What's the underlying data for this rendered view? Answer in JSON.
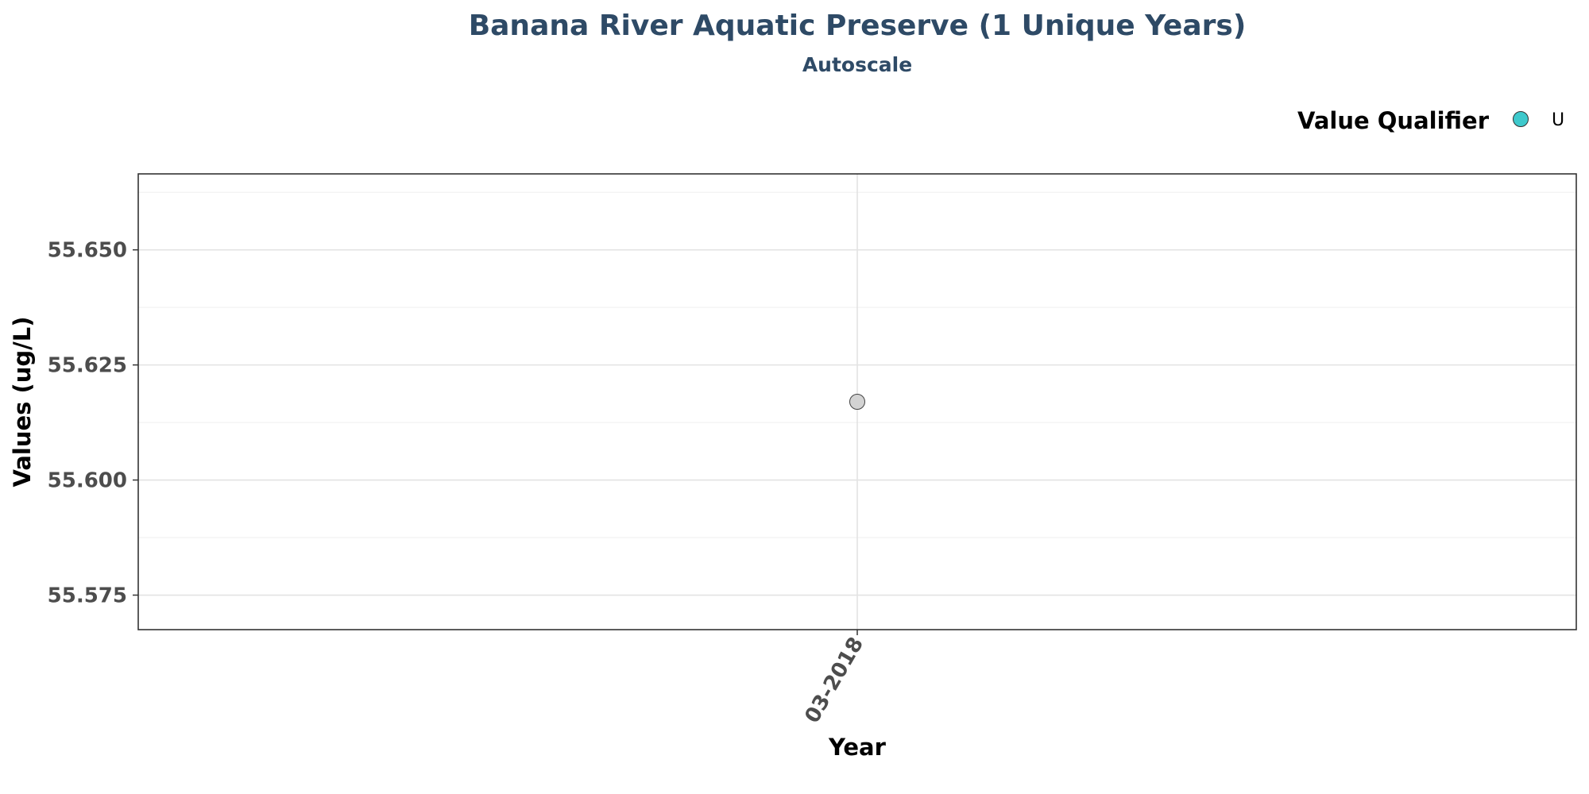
{
  "chart_data": {
    "type": "scatter",
    "title": "Banana River Aquatic Preserve (1 Unique Years)",
    "subtitle": "Autoscale",
    "xlabel": "Year",
    "ylabel": "Values (ug/L)",
    "x_categories": [
      "03-2018"
    ],
    "ylim": [
      55.5675,
      55.6665
    ],
    "y_ticks": [
      55.575,
      55.6,
      55.625,
      55.65
    ],
    "y_tick_labels": [
      "55.575",
      "55.600",
      "55.625",
      "55.650"
    ],
    "grid": true,
    "legend": {
      "title": "Value Qualifier",
      "placement": "top-right",
      "entries": [
        {
          "label": "U",
          "color": "#3ec9cc"
        }
      ]
    },
    "series": [
      {
        "points": [
          {
            "x": "03-2018",
            "y": 55.617
          }
        ],
        "color": "#d3d3d3"
      }
    ]
  }
}
